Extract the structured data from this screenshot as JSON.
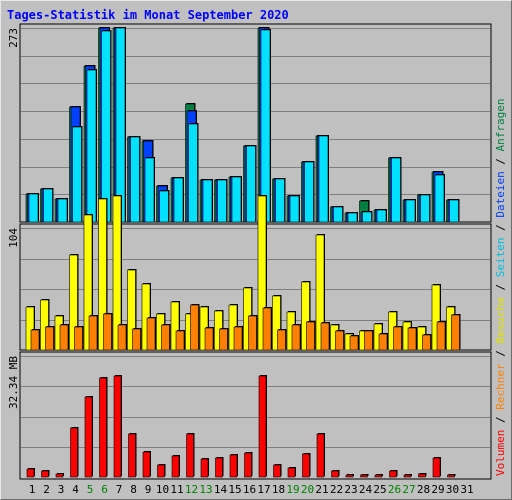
{
  "title": "Tages-Statistik im Monat September 2020",
  "colors": {
    "anfragen": "#008040",
    "dateien": "#0040ff",
    "seiten": "#00e0ff",
    "besuche": "#ffff00",
    "rechner": "#ff8000",
    "volumen": "#ff0000",
    "day_normal": "#000000",
    "day_weekend": "#008000",
    "grid": "#808080"
  },
  "chart_data": {
    "type": "bar",
    "categories": [
      "1",
      "2",
      "3",
      "4",
      "5",
      "6",
      "7",
      "8",
      "9",
      "10",
      "11",
      "12",
      "13",
      "14",
      "15",
      "16",
      "17",
      "18",
      "19",
      "20",
      "21",
      "22",
      "23",
      "24",
      "25",
      "26",
      "27",
      "28",
      "29",
      "30",
      "31"
    ],
    "weekend_days": [
      5,
      6,
      12,
      13,
      19,
      20,
      26,
      27
    ],
    "panels": [
      {
        "name": "top",
        "scale_label": "273",
        "ymax": 273,
        "series": [
          {
            "name": "Anfragen",
            "values": [
              39,
              47,
              32,
              162,
              220,
              273,
              273,
              120,
              114,
              50,
              62,
              166,
              59,
              59,
              64,
              107,
              273,
              60,
              36,
              85,
              121,
              21,
              12,
              30,
              17,
              90,
              31,
              38,
              70,
              31,
              0
            ]
          },
          {
            "name": "Dateien",
            "values": [
              39,
              47,
              32,
              162,
              220,
              273,
              273,
              120,
              114,
              50,
              62,
              156,
              59,
              59,
              64,
              107,
              273,
              60,
              36,
              85,
              121,
              21,
              12,
              14,
              17,
              90,
              31,
              38,
              70,
              31,
              0
            ]
          },
          {
            "name": "Seiten",
            "values": [
              39,
              47,
              32,
              134,
              214,
              269,
              273,
              120,
              90,
              44,
              62,
              138,
              59,
              59,
              64,
              107,
              270,
              60,
              36,
              85,
              121,
              21,
              12,
              14,
              17,
              90,
              31,
              38,
              66,
              31,
              0
            ]
          }
        ]
      },
      {
        "name": "middle",
        "scale_label": "104",
        "ymax": 104,
        "series": [
          {
            "name": "Besuche",
            "values": [
              37,
              43,
              29,
              81,
              115,
              129,
              131,
              68,
              56,
              31,
              41,
              31,
              37,
              33,
              38,
              53,
              131,
              46,
              32,
              58,
              98,
              21,
              14,
              16,
              22,
              32,
              24,
              20,
              55,
              37,
              0
            ]
          },
          {
            "name": "Rechner",
            "values": [
              17,
              20,
              21,
              20,
              29,
              31,
              21,
              18,
              27,
              21,
              16,
              38,
              19,
              18,
              20,
              29,
              36,
              17,
              21,
              24,
              23,
              16,
              12,
              16,
              14,
              20,
              19,
              13,
              24,
              30,
              0
            ]
          }
        ]
      },
      {
        "name": "bottom",
        "scale_label": "32.34 MB",
        "ymax": 32.34,
        "series": [
          {
            "name": "Volumen",
            "values": [
              2.1,
              1.6,
              0.9,
              13.1,
              21.5,
              26.4,
              27.1,
              11.6,
              6.6,
              3.2,
              5.5,
              11.6,
              4.8,
              5.2,
              6.0,
              6.3,
              27.1,
              3.2,
              2.3,
              6.2,
              11.4,
              1.5,
              0.25,
              0.25,
              0.25,
              1.6,
              0.25,
              0.7,
              5.2,
              0.5,
              0
            ]
          }
        ]
      }
    ]
  },
  "side_legend": [
    {
      "text": "Volumen",
      "color": "#ff0000"
    },
    {
      "text": " / ",
      "color": "#000000"
    },
    {
      "text": "Rechner",
      "color": "#ff8000"
    },
    {
      "text": " / ",
      "color": "#000000"
    },
    {
      "text": "Besuche",
      "color": "#e0e000"
    },
    {
      "text": " / ",
      "color": "#000000"
    },
    {
      "text": "Seiten",
      "color": "#00c0e0"
    },
    {
      "text": " / ",
      "color": "#000000"
    },
    {
      "text": "Dateien",
      "color": "#0040ff"
    },
    {
      "text": " / ",
      "color": "#000000"
    },
    {
      "text": "Anfragen",
      "color": "#008040"
    }
  ]
}
